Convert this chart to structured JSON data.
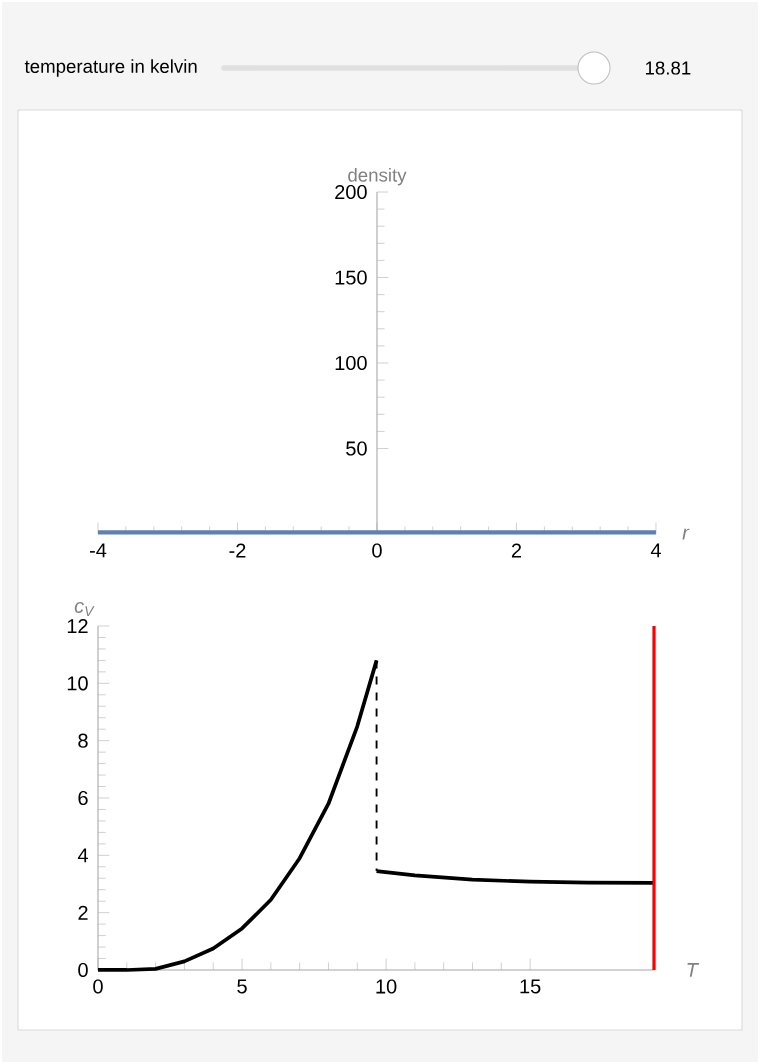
{
  "chart_data": [
    {
      "type": "line",
      "xlabel": "r",
      "ylabel": "density",
      "annotations": [
        "temperature in kelvin",
        "18.81"
      ],
      "x": [
        -4,
        4
      ],
      "series": [
        {
          "color": "#5e81b5",
          "values": [
            1,
            1
          ]
        }
      ],
      "xlim": [
        -4,
        4
      ],
      "ylim": [
        0,
        200
      ],
      "xticks": [
        -4,
        -2,
        0,
        2,
        4
      ],
      "yticks": [
        50,
        100,
        150,
        200
      ]
    },
    {
      "type": "line",
      "xlabel": "T",
      "ylabel": "c$_{V}$",
      "series": [
        {
          "color": "#000000",
          "x": [
            0,
            1,
            2,
            3,
            4,
            5,
            6,
            7,
            8,
            9,
            9.67
          ],
          "values": [
            0,
            0,
            0.04,
            0.3,
            0.75,
            1.45,
            2.45,
            3.9,
            5.8,
            8.5,
            10.8
          ]
        },
        {
          "color": "#000000",
          "line_style": "dashed",
          "x": [
            9.67,
            9.67
          ],
          "values": [
            10.8,
            3.45
          ]
        },
        {
          "color": "#000000",
          "x": [
            9.67,
            11,
            13,
            15,
            17,
            19.3
          ],
          "values": [
            3.45,
            3.3,
            3.15,
            3.08,
            3.05,
            3.04
          ]
        }
      ],
      "ref_lines": [
        {
          "axis": "x",
          "value": 19.3,
          "color": "#ff0000"
        }
      ],
      "xlim": [
        0,
        19.3
      ],
      "ylim": [
        0,
        12
      ],
      "xticks": [
        0,
        5,
        10,
        15
      ],
      "yticks": [
        0,
        2,
        4,
        6,
        8,
        10,
        12
      ]
    }
  ]
}
